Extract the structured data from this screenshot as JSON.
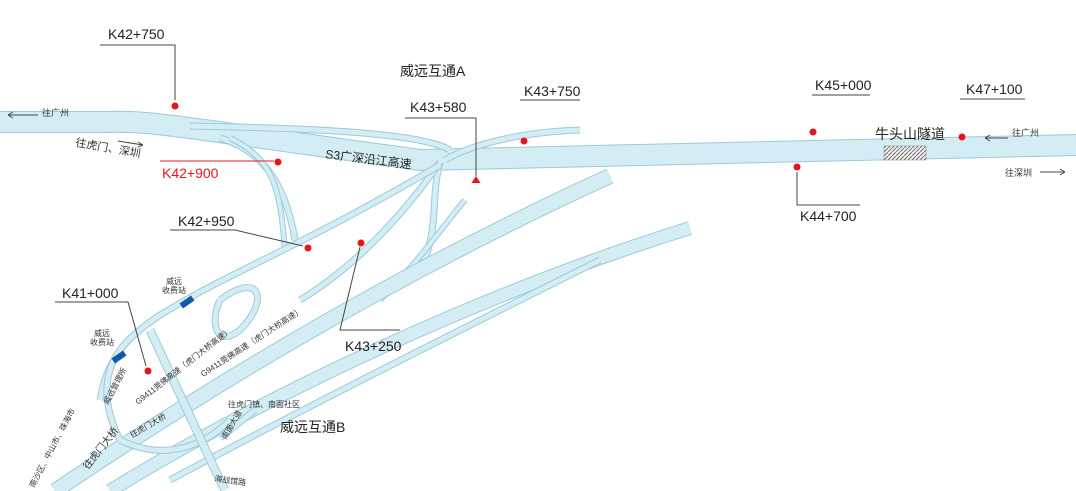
{
  "map": {
    "interchanges": [
      "威远互通A",
      "威远互通B"
    ],
    "highway_label": "S3广深沿江高速",
    "tunnel_label": "牛头山隧道",
    "directions": {
      "to_guangzhou_left": "往广州",
      "to_humen_shenzhen": "往虎门、深圳",
      "to_guangzhou_right": "往广州",
      "to_shenzhen_right": "往深圳"
    },
    "markers": [
      {
        "label": "K42+750",
        "shape": "dot",
        "color": "#e8141b"
      },
      {
        "label": "K42+900",
        "shape": "dot",
        "color": "#e8141b",
        "label_color": "#e8141b"
      },
      {
        "label": "K42+950",
        "shape": "dot",
        "color": "#e8141b"
      },
      {
        "label": "K43+250",
        "shape": "dot",
        "color": "#e8141b"
      },
      {
        "label": "K43+580",
        "shape": "triangle",
        "color": "#e8141b"
      },
      {
        "label": "K43+750",
        "shape": "dot",
        "color": "#e8141b"
      },
      {
        "label": "K44+700",
        "shape": "dot",
        "color": "#e8141b"
      },
      {
        "label": "K45+000",
        "shape": "dot",
        "color": "#e8141b"
      },
      {
        "label": "K47+100",
        "shape": "dot",
        "color": "#e8141b"
      },
      {
        "label": "K41+000",
        "shape": "dot",
        "color": "#e8141b"
      }
    ],
    "toll_stations": [
      "威远\n收费站",
      "威远\n收费站"
    ],
    "toll_station_lines": [
      [
        "威远",
        "收费站"
      ],
      [
        "威远",
        "收费站"
      ]
    ],
    "toll_color": "#1458a8",
    "road_color": "#d4ecf4",
    "places": {
      "management": "威远管理所",
      "g9411_a": "G9411莞佛高速（虎门大桥高速）",
      "g9411_b": "G9411莞佛高速（虎门大桥高速）",
      "humen_bridge_a": "往虎门大桥",
      "humen_bridge_b": "往虎门大桥",
      "cities": "南沙区、中山市、珠海市",
      "towns": "往虎门镇、南面社区",
      "nanmian_road": "南面大道",
      "haizhan_road": "海战馆路"
    }
  }
}
